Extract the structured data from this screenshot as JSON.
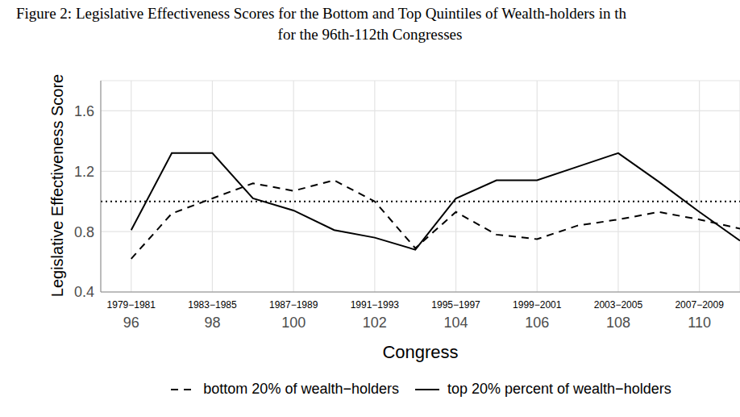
{
  "chart_data": {
    "type": "line",
    "title": "Figure 2: Legislative Effectiveness Scores for the Bottom and Top Quintiles of Wealth-holders in th",
    "subtitle": "for the 96th-112th Congresses",
    "x_label": "Congress",
    "y_label": "Legislative Effectiveness Score",
    "x": [
      96,
      97,
      98,
      99,
      100,
      101,
      102,
      103,
      104,
      105,
      106,
      107,
      108,
      109,
      110,
      111
    ],
    "series": [
      {
        "name": "bottom 20% of wealth−holders",
        "color": "#000000",
        "line_style": "dashed",
        "values": [
          0.62,
          0.92,
          1.02,
          1.12,
          1.07,
          1.14,
          1.0,
          0.69,
          0.93,
          0.78,
          0.75,
          0.84,
          0.88,
          0.93,
          0.88,
          0.82
        ]
      },
      {
        "name": "top 20% percent of wealth−holders",
        "color": "#000000",
        "line_style": "solid",
        "values": [
          0.81,
          1.32,
          1.32,
          1.02,
          0.94,
          0.81,
          0.76,
          0.68,
          1.02,
          1.14,
          1.14,
          1.23,
          1.32,
          1.13,
          0.93,
          0.74
        ]
      }
    ],
    "hline": 1,
    "xlim": [
      95.25,
      111
    ],
    "xticks": [
      {
        "value": 96,
        "label": "96",
        "period": "1979−1981"
      },
      {
        "value": 98,
        "label": "98",
        "period": "1983−1985"
      },
      {
        "value": 100,
        "label": "100",
        "period": "1987−1989"
      },
      {
        "value": 102,
        "label": "102",
        "period": "1991−1993"
      },
      {
        "value": 104,
        "label": "104",
        "period": "1995−1997"
      },
      {
        "value": 106,
        "label": "106",
        "period": "1999−2001"
      },
      {
        "value": 108,
        "label": "108",
        "period": "2003−2005"
      },
      {
        "value": 110,
        "label": "110",
        "period": "2007−2009"
      }
    ],
    "ylim": [
      0.4,
      1.8
    ],
    "yticks": [
      0.4,
      0.8,
      1.2,
      1.6
    ],
    "grid": true,
    "legend": "bottom"
  }
}
